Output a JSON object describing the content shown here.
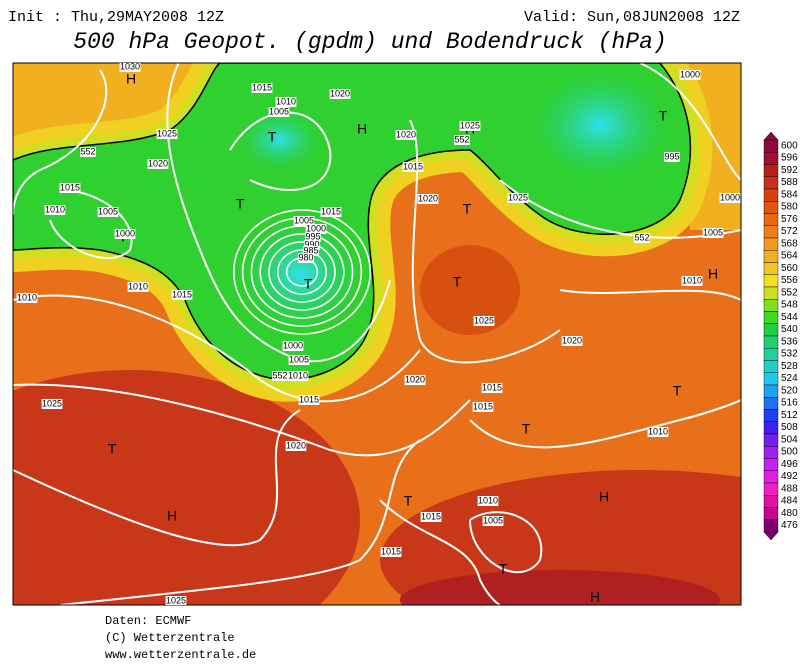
{
  "header": {
    "init": "Init : Thu,29MAY2008 12Z",
    "valid": "Valid: Sun,08JUN2008 12Z",
    "title": "500 hPa Geopot. (gpdm) und Bodendruck (hPa)"
  },
  "map": {
    "labels": [
      "H",
      "T",
      "H",
      "T",
      "T",
      "T",
      "T",
      "T",
      "T",
      "H",
      "H",
      "T",
      "T",
      "T",
      "H",
      "T",
      "T",
      "H",
      "H",
      "1030",
      "1015",
      "1010",
      "1005",
      "1020",
      "1025",
      "1020",
      "1015",
      "1010",
      "1005",
      "1000",
      "1010",
      "1015",
      "1010",
      "1020",
      "1025",
      "1015",
      "1020",
      "1025",
      "1000",
      "995",
      "1000",
      "1005",
      "1010",
      "1005",
      "1000",
      "995",
      "990",
      "985",
      "980",
      "1015",
      "1000",
      "1005",
      "1010",
      "1025",
      "1020",
      "1020",
      "1015",
      "1015",
      "1015",
      "1025",
      "1020",
      "1010",
      "1010",
      "1015",
      "1005",
      "1015",
      "1025",
      "552",
      "552",
      "552",
      "552"
    ]
  },
  "colorbar": {
    "values": [
      600,
      596,
      592,
      588,
      584,
      580,
      576,
      572,
      568,
      564,
      560,
      556,
      552,
      548,
      544,
      540,
      536,
      532,
      528,
      524,
      520,
      516,
      512,
      508,
      504,
      500,
      496,
      492,
      488,
      484,
      480,
      476
    ],
    "colors": [
      "#8c0a3c",
      "#a01030",
      "#b81e1e",
      "#c83018",
      "#d84010",
      "#e05510",
      "#e86a10",
      "#f08018",
      "#f09a20",
      "#f0b020",
      "#f0c820",
      "#f0e020",
      "#c8e020",
      "#80e020",
      "#40d820",
      "#20d040",
      "#20d070",
      "#20d0a0",
      "#20d0c8",
      "#20c8f0",
      "#20a0f0",
      "#2070f0",
      "#2040f0",
      "#4020f0",
      "#7020f0",
      "#a020f0",
      "#c820f0",
      "#e020e0",
      "#f020c0",
      "#e010a0",
      "#c00890",
      "#800070"
    ]
  },
  "footer": {
    "lines": [
      "Daten: ECMWF",
      "(C) Wetterzentrale",
      "www.wetterzentrale.de"
    ]
  }
}
